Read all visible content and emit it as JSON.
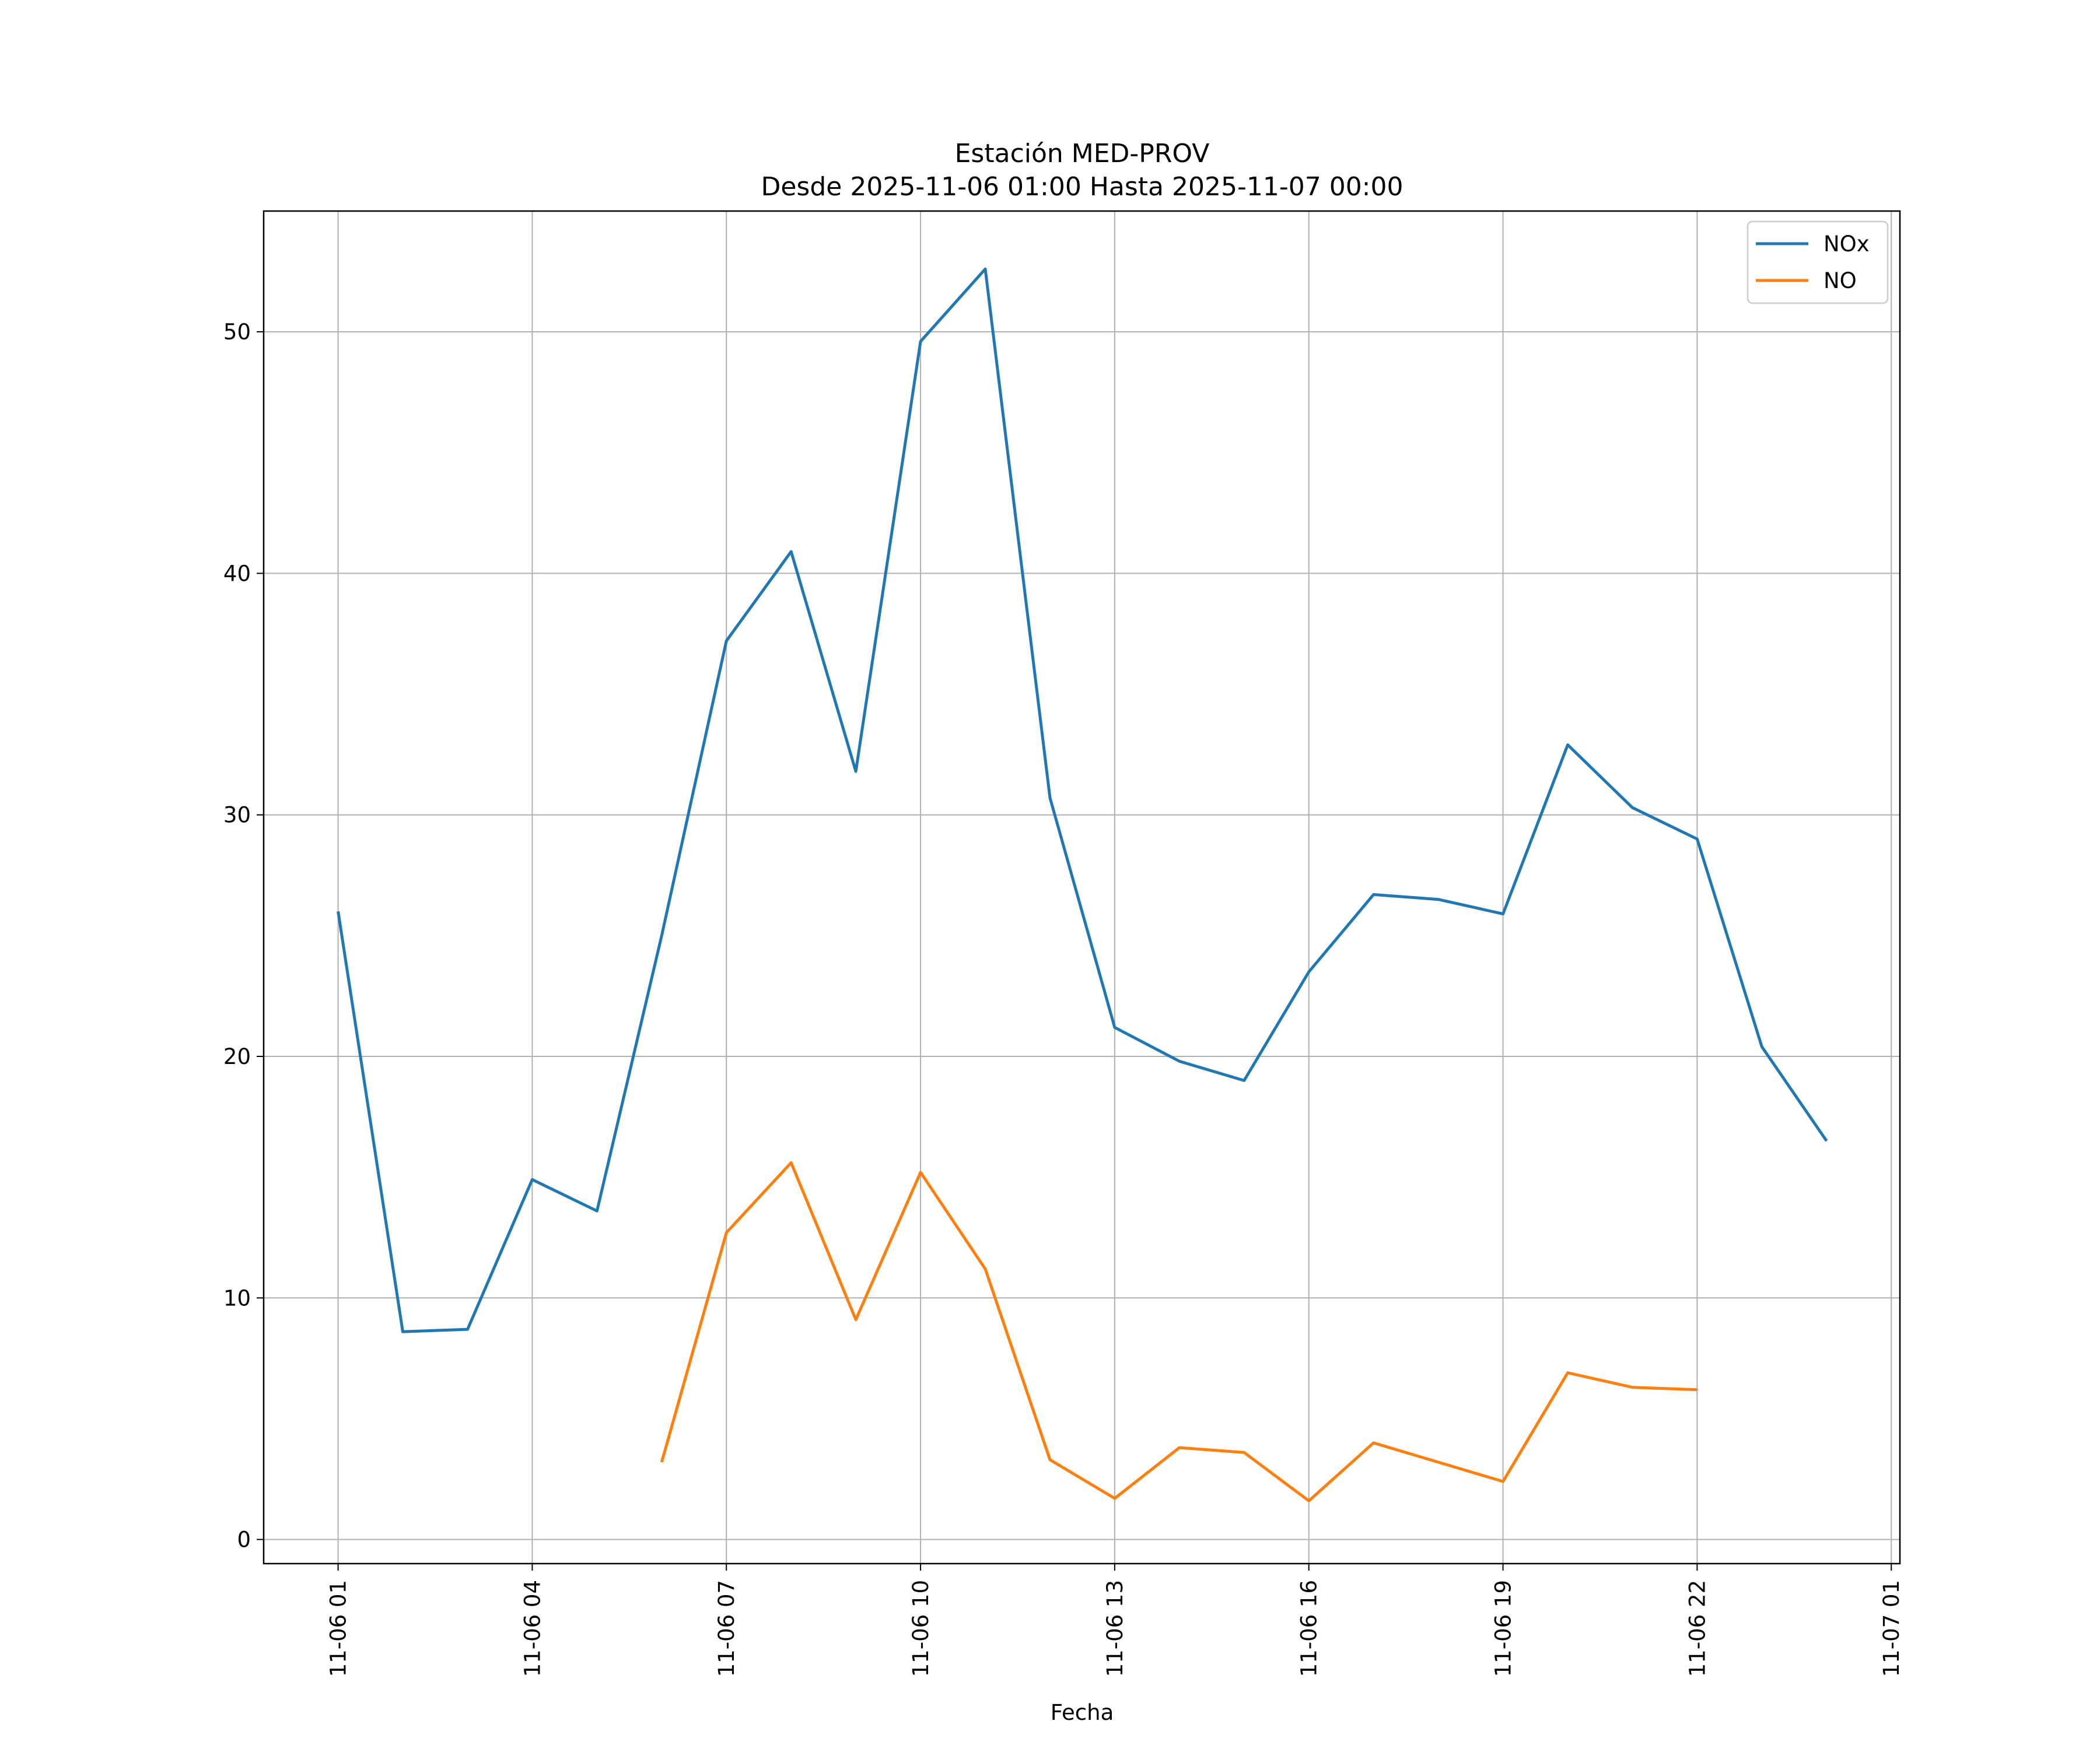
{
  "chart_data": {
    "type": "line",
    "title_line1": "Estación MED-PROV",
    "title_line2": "Desde 2025-11-06 01:00 Hasta 2025-11-07 00:00",
    "xlabel": "Fecha",
    "ylabel": "",
    "ylim": [
      -1,
      55
    ],
    "xlim": [
      "2025-11-05 23:51",
      "2025-11-07 01:08"
    ],
    "grid": true,
    "legend_position": "top-right",
    "x": [
      "2025-11-06 01:00",
      "2025-11-06 02:00",
      "2025-11-06 03:00",
      "2025-11-06 04:00",
      "2025-11-06 05:00",
      "2025-11-06 06:00",
      "2025-11-06 07:00",
      "2025-11-06 08:00",
      "2025-11-06 09:00",
      "2025-11-06 10:00",
      "2025-11-06 11:00",
      "2025-11-06 12:00",
      "2025-11-06 13:00",
      "2025-11-06 14:00",
      "2025-11-06 15:00",
      "2025-11-06 16:00",
      "2025-11-06 17:00",
      "2025-11-06 18:00",
      "2025-11-06 19:00",
      "2025-11-06 20:00",
      "2025-11-06 21:00",
      "2025-11-06 22:00",
      "2025-11-06 23:00",
      "2025-11-07 00:00"
    ],
    "x_ticks": [
      "2025-11-06 01:00",
      "2025-11-06 04:00",
      "2025-11-06 07:00",
      "2025-11-06 10:00",
      "2025-11-06 13:00",
      "2025-11-06 16:00",
      "2025-11-06 19:00",
      "2025-11-06 22:00",
      "2025-11-07 01:00"
    ],
    "x_tick_labels": [
      "11-06 01",
      "11-06 04",
      "11-06 07",
      "11-06 10",
      "11-06 13",
      "11-06 16",
      "11-06 19",
      "11-06 22",
      "11-07 01"
    ],
    "y_ticks": [
      0,
      10,
      20,
      30,
      40,
      50
    ],
    "y_tick_labels": [
      "0",
      "10",
      "20",
      "30",
      "40",
      "50"
    ],
    "series": [
      {
        "name": "NOx",
        "color": "#1f77b4",
        "values": [
          26.0,
          8.6,
          8.7,
          14.9,
          13.6,
          25.0,
          37.2,
          40.9,
          31.8,
          49.6,
          52.6,
          30.7,
          21.2,
          19.8,
          19.0,
          23.5,
          26.7,
          26.5,
          25.9,
          32.9,
          30.3,
          29.0,
          20.4,
          16.5
        ]
      },
      {
        "name": "NO",
        "color": "#ff7f0e",
        "values": [
          null,
          null,
          null,
          null,
          null,
          3.2,
          12.7,
          15.6,
          9.1,
          15.2,
          11.2,
          3.3,
          1.7,
          3.8,
          3.6,
          1.6,
          4.0,
          3.2,
          2.4,
          6.9,
          6.3,
          6.2,
          null,
          null
        ]
      }
    ]
  }
}
